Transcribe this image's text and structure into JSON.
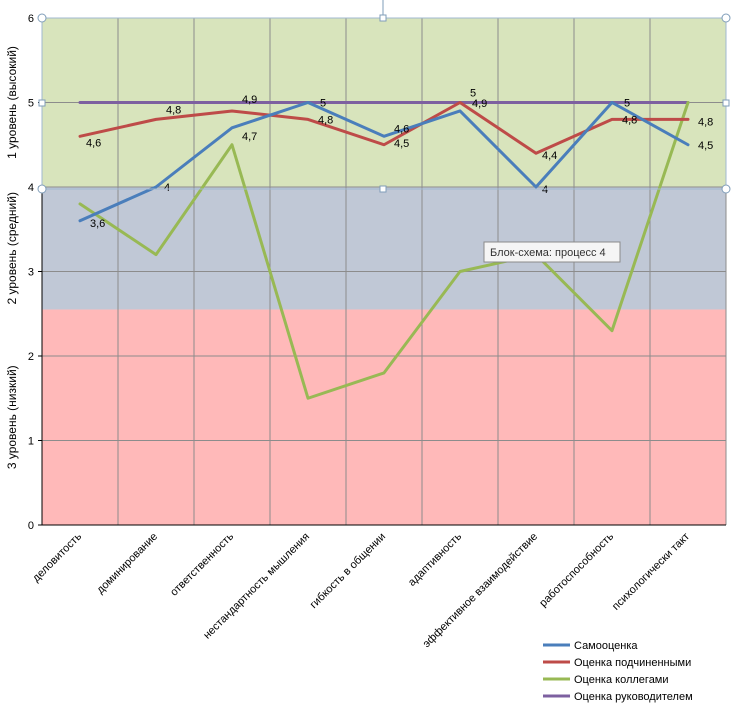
{
  "chart_data": {
    "type": "line",
    "categories": [
      "деловитость",
      "доминирование",
      "ответственность",
      "нестандартность мышления",
      "гибкость в общении",
      "адаптивность",
      "эффективное взаимодействие",
      "работоспособность",
      "психологически такт"
    ],
    "ylim": [
      0,
      6
    ],
    "yticks": [
      "0",
      "1",
      "2",
      "3",
      "4",
      "5",
      "6"
    ],
    "grid": true,
    "legend_position": "bottom-right",
    "series": [
      {
        "name": "Самооценка",
        "color": "#4a7ebb",
        "values": [
          3.6,
          4,
          4.7,
          5,
          4.6,
          4.9,
          4,
          5,
          4.5
        ],
        "labels": [
          "3,6",
          "4",
          "4,7",
          "5",
          "4,6",
          "4,9",
          "4",
          "5",
          "4,5"
        ]
      },
      {
        "name": "Оценка подчиненными",
        "color": "#be4b48",
        "values": [
          4.6,
          4.8,
          4.9,
          4.8,
          4.5,
          5,
          4.4,
          4.8,
          4.8
        ],
        "labels": [
          "4,6",
          "4,8",
          "4,9",
          "4,8",
          "4,5",
          "5",
          "4,4",
          "4,8",
          "4,8"
        ]
      },
      {
        "name": "Оценка коллегами",
        "color": "#98b954",
        "values": [
          3.8,
          3.2,
          4.5,
          1.5,
          1.8,
          3,
          3.2,
          2.3,
          5
        ],
        "labels": []
      },
      {
        "name": "Оценка руководителем",
        "color": "#7d60a0",
        "values": [
          5,
          5,
          5,
          5,
          5,
          5,
          5,
          5,
          5
        ],
        "labels": []
      }
    ],
    "bands": [
      {
        "label": "1  уровень (высокий)",
        "from": 4,
        "to": 6,
        "color": "#d8e4bc"
      },
      {
        "label": "2  уровень (средний)",
        "from": 2.55,
        "to": 4,
        "color": "#c0c8d6"
      },
      {
        "label": "3  уровень (низкий)",
        "from": 0,
        "to": 2.55,
        "color": "#ffb9b9"
      }
    ]
  },
  "tooltip": {
    "text": "Блок-схема: процесс 4"
  }
}
